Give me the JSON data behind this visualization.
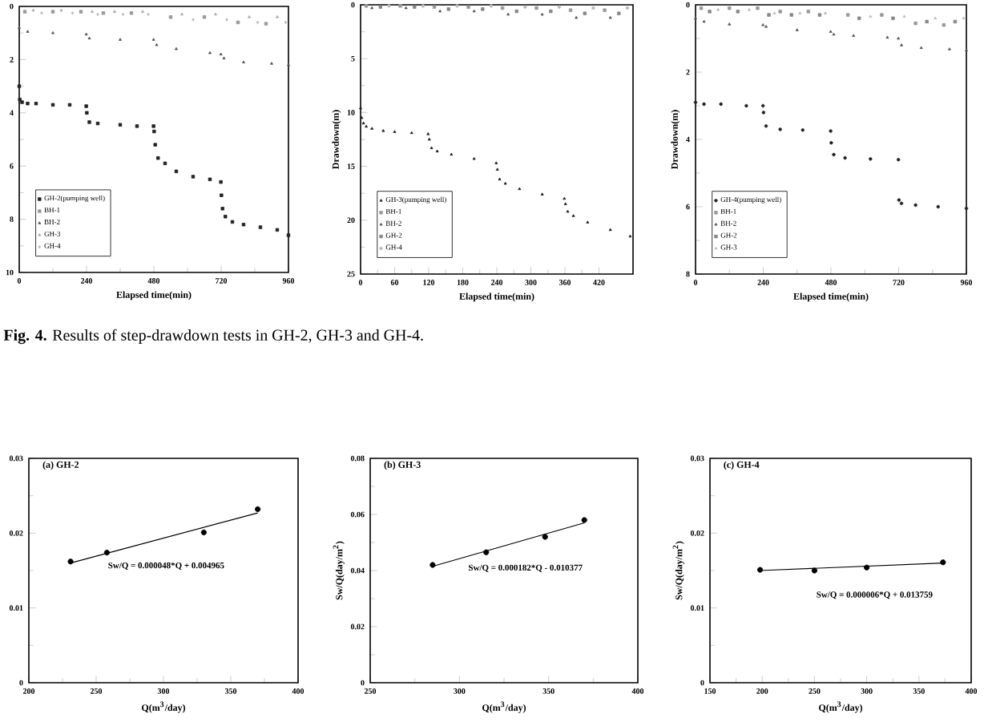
{
  "chart_data": [
    {
      "type": "scatter",
      "xlabel": "Elapsed time(min)",
      "xlim": [
        0,
        960
      ],
      "ylim": [
        10,
        0
      ],
      "xticks": [
        0,
        240,
        480,
        720,
        960
      ],
      "yticks": [
        0,
        2,
        4,
        6,
        8,
        10
      ],
      "legend": "bottom left",
      "x": [
        0,
        2,
        10,
        30,
        60,
        120,
        180,
        239,
        241,
        250,
        280,
        360,
        420,
        479,
        481,
        485,
        495,
        520,
        560,
        620,
        680,
        719,
        721,
        725,
        735,
        760,
        800,
        860,
        920,
        960
      ],
      "series": [
        {
          "name": "GH-2(pumping well)",
          "color": "#222222",
          "marker": "square",
          "values": [
            3.0,
            3.5,
            3.6,
            3.65,
            3.65,
            3.7,
            3.7,
            3.75,
            4.0,
            4.35,
            4.4,
            4.45,
            4.5,
            4.5,
            4.7,
            5.2,
            5.7,
            5.9,
            6.2,
            6.4,
            6.5,
            6.6,
            7.1,
            7.6,
            7.9,
            8.1,
            8.2,
            8.3,
            8.4,
            8.6
          ]
        },
        {
          "name": "BH-1",
          "color": "#999999",
          "marker": "square",
          "x": [
            20,
            120,
            220,
            300,
            400,
            540,
            660,
            780,
            880
          ],
          "values": [
            0.2,
            0.2,
            0.2,
            0.25,
            0.25,
            0.4,
            0.4,
            0.6,
            0.65
          ]
        },
        {
          "name": "BH-2",
          "color": "#555555",
          "marker": "triangle",
          "x": [
            0,
            30,
            120,
            239,
            250,
            360,
            479,
            490,
            560,
            680,
            719,
            730,
            800,
            900,
            960
          ],
          "values": [
            0.8,
            0.95,
            1.0,
            1.05,
            1.2,
            1.25,
            1.25,
            1.45,
            1.6,
            1.75,
            1.8,
            1.95,
            2.1,
            2.15,
            2.2
          ]
        },
        {
          "name": "GH-3",
          "color": "#aaaaaa",
          "marker": "triangle",
          "x": [
            50,
            150,
            260,
            340,
            440,
            580,
            700,
            820,
            920
          ],
          "values": [
            0.15,
            0.15,
            0.2,
            0.2,
            0.2,
            0.3,
            0.3,
            0.4,
            0.4
          ]
        },
        {
          "name": "GH-4",
          "color": "#bbbbbb",
          "marker": "diamond",
          "x": [
            80,
            190,
            280,
            370,
            460,
            620,
            740,
            850,
            950
          ],
          "values": [
            0.25,
            0.25,
            0.3,
            0.3,
            0.3,
            0.5,
            0.5,
            0.6,
            0.6
          ]
        }
      ]
    },
    {
      "type": "scatter",
      "xlabel": "Elapsed time(min)",
      "ylabel": "Drawdown(m)",
      "xlim": [
        0,
        480
      ],
      "ylim": [
        25,
        0
      ],
      "xticks": [
        0,
        60,
        120,
        180,
        240,
        300,
        360,
        420
      ],
      "yticks": [
        0,
        5,
        10,
        15,
        20,
        25
      ],
      "legend": "bottom left",
      "x": [
        0,
        2,
        5,
        10,
        20,
        40,
        60,
        90,
        119,
        121,
        125,
        135,
        160,
        200,
        239,
        241,
        245,
        255,
        280,
        320,
        359,
        361,
        365,
        375,
        400,
        440,
        475
      ],
      "series": [
        {
          "name": "GH-3(pumping well)",
          "color": "#222222",
          "marker": "triangle",
          "values": [
            9.6,
            10.5,
            11.0,
            11.3,
            11.5,
            11.7,
            11.8,
            11.9,
            12.0,
            12.5,
            13.3,
            13.6,
            13.9,
            14.3,
            14.7,
            15.3,
            16.2,
            16.6,
            17.1,
            17.6,
            18.0,
            18.5,
            19.2,
            19.6,
            20.2,
            20.9,
            21.5
          ]
        },
        {
          "name": "BH-1",
          "color": "#999999",
          "marker": "square",
          "x": [
            10,
            70,
            130,
            190,
            250,
            310,
            370,
            430
          ],
          "values": [
            0.1,
            0.1,
            0.2,
            0.2,
            0.3,
            0.3,
            0.5,
            0.5
          ]
        },
        {
          "name": "BH-2",
          "color": "#555555",
          "marker": "triangle",
          "x": [
            20,
            80,
            140,
            200,
            260,
            320,
            380,
            440
          ],
          "values": [
            0.3,
            0.3,
            0.6,
            0.6,
            0.9,
            0.9,
            1.2,
            1.2
          ]
        },
        {
          "name": "GH-2",
          "color": "#888888",
          "marker": "square",
          "x": [
            35,
            95,
            155,
            215,
            275,
            335,
            395,
            455
          ],
          "values": [
            0.2,
            0.2,
            0.4,
            0.4,
            0.6,
            0.6,
            0.8,
            0.8
          ]
        },
        {
          "name": "GH-4",
          "color": "#bbbbbb",
          "marker": "circle",
          "x": [
            50,
            110,
            170,
            230,
            290,
            350,
            410,
            470
          ],
          "values": [
            0.1,
            0.1,
            0.1,
            0.1,
            0.2,
            0.2,
            0.3,
            0.3
          ]
        }
      ]
    },
    {
      "type": "scatter",
      "xlabel": "Elapsed time(min)",
      "ylabel": "Drawdown(m)",
      "xlim": [
        0,
        960
      ],
      "ylim": [
        8,
        0
      ],
      "xticks": [
        0,
        240,
        480,
        720,
        960
      ],
      "yticks": [
        0,
        2,
        4,
        6,
        8
      ],
      "legend": "bottom left",
      "x": [
        0,
        30,
        90,
        180,
        239,
        241,
        250,
        300,
        380,
        479,
        481,
        490,
        530,
        620,
        719,
        721,
        730,
        780,
        860,
        960
      ],
      "series": [
        {
          "name": "GH-4(pumping well)",
          "color": "#222222",
          "marker": "circle",
          "values": [
            2.9,
            2.95,
            2.95,
            3.0,
            3.0,
            3.2,
            3.6,
            3.7,
            3.72,
            3.75,
            4.1,
            4.45,
            4.55,
            4.58,
            4.6,
            5.8,
            5.9,
            5.95,
            6.0,
            6.05
          ]
        },
        {
          "name": "BH-1",
          "color": "#999999",
          "marker": "square",
          "x": [
            20,
            120,
            220,
            300,
            400,
            540,
            660,
            780,
            880
          ],
          "values": [
            0.1,
            0.1,
            0.1,
            0.2,
            0.2,
            0.3,
            0.3,
            0.55,
            0.6
          ]
        },
        {
          "name": "BH-2",
          "color": "#555555",
          "marker": "triangle",
          "x": [
            0,
            30,
            120,
            239,
            250,
            360,
            479,
            490,
            560,
            680,
            719,
            730,
            800,
            900,
            960
          ],
          "values": [
            0.4,
            0.5,
            0.58,
            0.6,
            0.65,
            0.75,
            0.8,
            0.88,
            0.92,
            0.97,
            1.0,
            1.2,
            1.28,
            1.32,
            1.35
          ]
        },
        {
          "name": "GH-2",
          "color": "#888888",
          "marker": "square",
          "x": [
            50,
            150,
            260,
            340,
            440,
            580,
            700,
            820,
            920
          ],
          "values": [
            0.2,
            0.2,
            0.3,
            0.3,
            0.3,
            0.4,
            0.4,
            0.5,
            0.5
          ]
        },
        {
          "name": "GH-3",
          "color": "#bbbbbb",
          "marker": "triangle",
          "x": [
            80,
            190,
            280,
            370,
            460,
            620,
            740,
            850,
            950
          ],
          "values": [
            0.15,
            0.15,
            0.25,
            0.25,
            0.25,
            0.35,
            0.35,
            0.4,
            0.4
          ]
        }
      ]
    },
    {
      "type": "other",
      "annotations": [
        "**Fig. 4.** Results of step-drawdown tests in GH-2, GH-3 and GH-4."
      ]
    },
    {
      "type": "scatter",
      "title": "(a) GH-2",
      "xlabel": "Q(m$^{3}$/day)",
      "xlim": [
        200,
        400
      ],
      "ylim": [
        0,
        0.03
      ],
      "xticks": [
        200,
        250,
        300,
        350,
        400
      ],
      "yticks": [
        0,
        0.01,
        0.02,
        0.03
      ],
      "annotations": [
        "Sw/Q = 0.000048*Q + 0.004965"
      ],
      "series": [
        {
          "color": "#000000",
          "marker": "circle",
          "x": [
            231,
            258,
            330,
            370
          ],
          "values": [
            0.0162,
            0.0174,
            0.0201,
            0.0232
          ]
        },
        {
          "type": "line",
          "color": "#000000",
          "x": [
            231,
            370
          ],
          "values": [
            0.016,
            0.0227
          ]
        }
      ]
    },
    {
      "type": "scatter",
      "title": "(b) GH-3",
      "xlabel": "Q(m$^{3}$/day)",
      "ylabel": "Sw/Q(day/m$^{2}$)",
      "xlim": [
        250,
        400
      ],
      "ylim": [
        0,
        0.08
      ],
      "xticks": [
        250,
        300,
        350,
        400
      ],
      "yticks": [
        0,
        0.02,
        0.04,
        0.06,
        0.08
      ],
      "annotations": [
        "Sw/Q = 0.000182*Q - 0.010377"
      ],
      "series": [
        {
          "color": "#000000",
          "marker": "circle",
          "x": [
            285,
            315,
            348,
            370
          ],
          "values": [
            0.042,
            0.0465,
            0.052,
            0.058
          ]
        },
        {
          "type": "line",
          "color": "#000000",
          "x": [
            285,
            370
          ],
          "values": [
            0.0415,
            0.057
          ]
        }
      ]
    },
    {
      "type": "scatter",
      "title": "(c) GH-4",
      "xlabel": "Q(m$^{3}$/day)",
      "ylabel": "Sw/Q(day/m$^{2}$)",
      "xlim": [
        150,
        400
      ],
      "ylim": [
        0,
        0.03
      ],
      "xticks": [
        150,
        200,
        250,
        300,
        350,
        400
      ],
      "yticks": [
        0,
        0.01,
        0.02,
        0.03
      ],
      "annotations": [
        "Sw/Q = 0.000006*Q + 0.013759"
      ],
      "series": [
        {
          "color": "#000000",
          "marker": "circle",
          "x": [
            198,
            250,
            300,
            373
          ],
          "values": [
            0.0151,
            0.015,
            0.0154,
            0.0161
          ]
        },
        {
          "type": "line",
          "color": "#000000",
          "x": [
            198,
            373
          ],
          "values": [
            0.015,
            0.016
          ]
        }
      ]
    }
  ]
}
